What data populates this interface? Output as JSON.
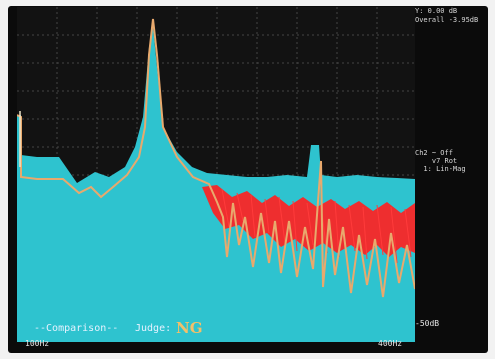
{
  "screen": {
    "top_right_line1": "Y: 0.00 dB",
    "top_right_line2": "Overall -3.95dB",
    "channel_info_line1": "Ch2 ~ Off",
    "channel_info_line2": "    v7 Rot",
    "channel_info_line3": "  1: Lin-Mag",
    "bottom_left_freq": "100Hz",
    "bottom_right_freq": "400Hz",
    "bottom_right_db": "-50dB",
    "comparison_label": "--Comparison--",
    "judge_label": "Judge:",
    "judge_value": "NG"
  },
  "colors": {
    "background": "#121212",
    "fill": "#2ec3cf",
    "reference_line": "#e8a96d",
    "noise": "#ff2222",
    "grid": "#444444"
  }
}
